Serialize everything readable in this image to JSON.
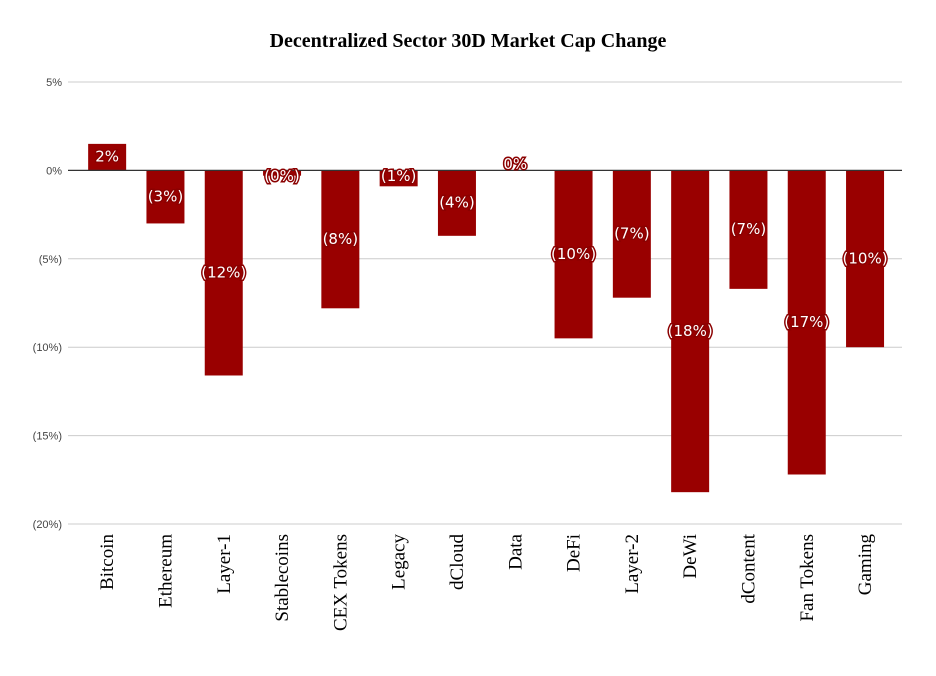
{
  "chart_data": {
    "type": "bar",
    "title": "Decentralized Sector 30D Market Cap Change",
    "xlabel": "",
    "ylabel": "",
    "categories": [
      "Bitcoin",
      "Ethereum",
      "Layer-1",
      "Stablecoins",
      "CEX Tokens",
      "Legacy",
      "dCloud",
      "Data",
      "DeFi",
      "Layer-2",
      "DeWi",
      "dContent",
      "Fan Tokens",
      "Gaming"
    ],
    "values": [
      1.5,
      -3.0,
      -11.6,
      -0.3,
      -7.8,
      -0.9,
      -3.7,
      0.0,
      -9.5,
      -7.2,
      -18.2,
      -6.7,
      -17.2,
      -10.0
    ],
    "data_labels": [
      "2%",
      "(3%)",
      "(12%)",
      "(0%)",
      "(8%)",
      "(1%)",
      "(4%)",
      "0%",
      "(10%)",
      "(7%)",
      "(18%)",
      "(7%)",
      "(17%)",
      "(10%)"
    ],
    "ylim": [
      -20,
      5
    ],
    "yticks": [
      5,
      0,
      -5,
      -10,
      -15,
      -20
    ],
    "ytick_labels": [
      "5%",
      "0%",
      "(5%)",
      "(10%)",
      "(15%)",
      "(20%)"
    ],
    "grid": true,
    "legend": "none",
    "colors": {
      "bar": "#990000",
      "grid": "#cccccc",
      "axis": "#333333"
    }
  }
}
